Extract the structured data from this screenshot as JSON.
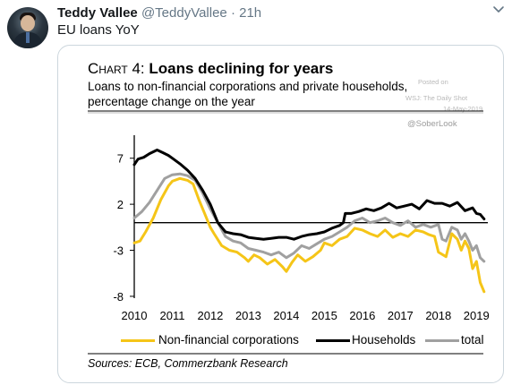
{
  "tweet": {
    "name": "Teddy Vallee",
    "handle": "@TeddyVallee",
    "separator": "·",
    "time": "21h",
    "text": "EU loans YoY",
    "icons": {
      "avatar": "avatar-photo",
      "menu": "chevron-down-icon"
    }
  },
  "chart_header": {
    "chart_number": "Chart 4:",
    "title": "Loans declining for years",
    "subtitle_line1": "Loans to non-financial corporations and private households,",
    "subtitle_line2": "percentage change on the year"
  },
  "watermarks": {
    "posted_on": "Posted on",
    "wsj": "WSJ: The Daily Shot",
    "date": "14-May-2019",
    "soberlook": "@SoberLook"
  },
  "source": "Sources: ECB, Commerzbank Research",
  "chart_data": {
    "type": "line",
    "x_tick_labels": [
      "2010",
      "2011",
      "2012",
      "2013",
      "2014",
      "2015",
      "2016",
      "2017",
      "2018",
      "2019"
    ],
    "y_tick_labels": [
      "7",
      "2",
      "-3",
      "-8"
    ],
    "y_ticks": [
      7,
      2,
      -3,
      -8
    ],
    "xlim": [
      2010,
      2019.3
    ],
    "ylim": [
      -8.2,
      9.5
    ],
    "grid": false,
    "legend_position": "bottom",
    "series": [
      {
        "name": "Non-financial corporations",
        "color": "#f5c518",
        "x": [
          2010.0,
          2010.15,
          2010.3,
          2010.5,
          2010.7,
          2010.9,
          2011.0,
          2011.2,
          2011.4,
          2011.55,
          2011.7,
          2011.85,
          2012.0,
          2012.1,
          2012.3,
          2012.5,
          2012.7,
          2012.9,
          2013.0,
          2013.15,
          2013.3,
          2013.5,
          2013.7,
          2013.9,
          2014.0,
          2014.15,
          2014.3,
          2014.5,
          2014.7,
          2014.9,
          2015.0,
          2015.2,
          2015.4,
          2015.6,
          2015.8,
          2016.0,
          2016.2,
          2016.4,
          2016.6,
          2016.8,
          2017.0,
          2017.2,
          2017.4,
          2017.6,
          2017.75,
          2017.9,
          2018.0,
          2018.2,
          2018.35,
          2018.5,
          2018.6,
          2018.7,
          2018.8,
          2018.9,
          2019.0,
          2019.1,
          2019.2
        ],
        "values": [
          -2.2,
          -2.0,
          -1.0,
          0.5,
          2.5,
          4.0,
          4.5,
          4.8,
          4.6,
          4.2,
          2.5,
          1.0,
          -0.5,
          -1.2,
          -2.5,
          -3.0,
          -3.2,
          -3.8,
          -4.2,
          -3.5,
          -3.8,
          -4.5,
          -4.0,
          -4.8,
          -5.3,
          -4.3,
          -3.5,
          -4.2,
          -3.7,
          -3.0,
          -2.2,
          -2.5,
          -1.8,
          -1.5,
          -0.6,
          -0.8,
          -1.2,
          -1.5,
          -0.8,
          -1.6,
          -1.2,
          -1.5,
          -0.8,
          -1.0,
          -1.3,
          -1.5,
          -3.2,
          -3.7,
          -1.2,
          -1.8,
          -3.0,
          -2.0,
          -2.8,
          -5.0,
          -4.2,
          -6.5,
          -7.5
        ]
      },
      {
        "name": "Households",
        "color": "#000000",
        "x": [
          2010.0,
          2010.1,
          2010.25,
          2010.4,
          2010.6,
          2010.75,
          2010.9,
          2011.0,
          2011.2,
          2011.4,
          2011.6,
          2011.8,
          2012.0,
          2012.2,
          2012.4,
          2012.6,
          2012.8,
          2013.0,
          2013.2,
          2013.4,
          2013.6,
          2013.8,
          2014.0,
          2014.2,
          2014.4,
          2014.6,
          2014.8,
          2015.0,
          2015.2,
          2015.4,
          2015.5,
          2015.55,
          2015.7,
          2015.9,
          2016.1,
          2016.3,
          2016.5,
          2016.7,
          2016.9,
          2017.1,
          2017.3,
          2017.5,
          2017.7,
          2017.9,
          2018.1,
          2018.3,
          2018.5,
          2018.7,
          2018.9,
          2019.0,
          2019.1,
          2019.2
        ],
        "values": [
          6.3,
          6.9,
          7.1,
          7.5,
          7.9,
          7.6,
          7.3,
          7.0,
          6.4,
          5.7,
          4.8,
          3.5,
          2.0,
          0.0,
          -1.0,
          -1.2,
          -1.3,
          -1.6,
          -1.7,
          -1.8,
          -1.7,
          -1.6,
          -1.6,
          -1.8,
          -1.5,
          -1.3,
          -1.2,
          -1.0,
          -0.6,
          -0.3,
          0.0,
          1.0,
          1.0,
          1.2,
          1.5,
          1.3,
          1.6,
          2.1,
          1.6,
          1.8,
          2.0,
          1.5,
          2.4,
          2.1,
          2.1,
          1.8,
          2.2,
          1.3,
          1.6,
          1.0,
          0.9,
          0.4
        ]
      },
      {
        "name": "total",
        "color": "#a0a0a0",
        "x": [
          2010.0,
          2010.2,
          2010.4,
          2010.6,
          2010.8,
          2011.0,
          2011.2,
          2011.4,
          2011.6,
          2011.8,
          2012.0,
          2012.2,
          2012.4,
          2012.6,
          2012.8,
          2013.0,
          2013.2,
          2013.4,
          2013.6,
          2013.8,
          2014.0,
          2014.2,
          2014.4,
          2014.6,
          2014.8,
          2015.0,
          2015.2,
          2015.4,
          2015.6,
          2015.8,
          2016.0,
          2016.2,
          2016.4,
          2016.6,
          2016.8,
          2017.0,
          2017.2,
          2017.4,
          2017.6,
          2017.8,
          2018.0,
          2018.1,
          2018.2,
          2018.35,
          2018.5,
          2018.6,
          2018.7,
          2018.8,
          2018.9,
          2019.0,
          2019.1,
          2019.2
        ],
        "values": [
          0.5,
          1.2,
          2.2,
          3.5,
          4.8,
          5.2,
          5.3,
          5.1,
          4.6,
          3.2,
          1.5,
          0.0,
          -1.5,
          -2.0,
          -2.2,
          -2.8,
          -3.0,
          -3.2,
          -3.5,
          -3.2,
          -3.8,
          -3.3,
          -2.5,
          -2.8,
          -2.3,
          -1.8,
          -1.5,
          -1.0,
          -0.5,
          0.2,
          0.5,
          0.0,
          0.2,
          0.5,
          0.0,
          -0.3,
          0.2,
          -0.5,
          -0.2,
          -0.5,
          -0.2,
          -1.8,
          -2.0,
          -0.5,
          -0.8,
          -1.8,
          -1.2,
          -2.0,
          -3.0,
          -2.5,
          -3.8,
          -4.2
        ]
      }
    ]
  }
}
